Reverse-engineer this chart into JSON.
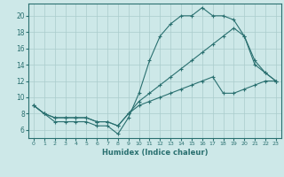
{
  "xlabel": "Humidex (Indice chaleur)",
  "background_color": "#cde8e8",
  "grid_color": "#aacccc",
  "line_color": "#2a7070",
  "xlim": [
    -0.5,
    23.5
  ],
  "ylim": [
    5.0,
    21.5
  ],
  "xticks": [
    0,
    1,
    2,
    3,
    4,
    5,
    6,
    7,
    8,
    9,
    10,
    11,
    12,
    13,
    14,
    15,
    16,
    17,
    18,
    19,
    20,
    21,
    22,
    23
  ],
  "yticks": [
    6,
    8,
    10,
    12,
    14,
    16,
    18,
    20
  ],
  "line1_x": [
    0,
    1,
    2,
    3,
    4,
    5,
    6,
    7,
    8,
    9,
    10,
    11,
    12,
    13,
    14,
    15,
    16,
    17,
    18,
    19,
    20,
    21,
    22,
    23
  ],
  "line1_y": [
    9,
    8,
    7,
    7,
    7,
    7,
    6.5,
    6.5,
    5.5,
    7.5,
    10.5,
    14.5,
    17.5,
    19.0,
    20.0,
    20.0,
    21.0,
    20.0,
    20.0,
    19.5,
    17.5,
    14.5,
    13.0,
    12.0
  ],
  "line2_x": [
    0,
    1,
    2,
    3,
    4,
    5,
    6,
    7,
    8,
    9,
    10,
    11,
    12,
    13,
    14,
    15,
    16,
    17,
    18,
    19,
    20,
    21,
    22,
    23
  ],
  "line2_y": [
    9.0,
    8.0,
    7.5,
    7.5,
    7.5,
    7.5,
    7.0,
    7.0,
    6.5,
    8.0,
    9.5,
    10.5,
    11.5,
    12.5,
    13.5,
    14.5,
    15.5,
    16.5,
    17.5,
    18.5,
    17.5,
    14.0,
    13.0,
    12.0
  ],
  "line3_x": [
    0,
    1,
    2,
    3,
    4,
    5,
    6,
    7,
    8,
    9,
    10,
    11,
    12,
    13,
    14,
    15,
    16,
    17,
    18,
    19,
    20,
    21,
    22,
    23
  ],
  "line3_y": [
    9.0,
    8.0,
    7.5,
    7.5,
    7.5,
    7.5,
    7.0,
    7.0,
    6.5,
    8.0,
    9.0,
    9.5,
    10.0,
    10.5,
    11.0,
    11.5,
    12.0,
    12.5,
    10.5,
    10.5,
    11.0,
    11.5,
    12.0,
    12.0
  ],
  "xticklabels": [
    "0",
    "1",
    "2",
    "3",
    "4",
    "5",
    "6",
    "7",
    "8",
    "9",
    "10",
    "11",
    "12",
    "13",
    "14",
    "15",
    "16",
    "17",
    "18",
    "19",
    "20",
    "21",
    "22",
    "23"
  ]
}
